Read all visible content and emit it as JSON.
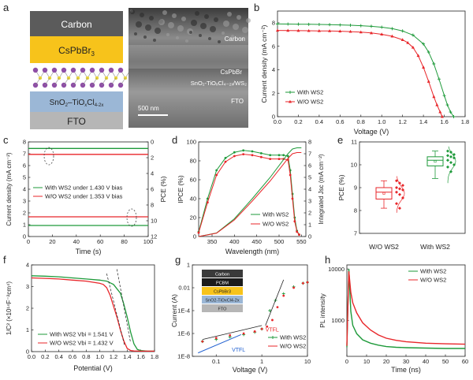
{
  "colors": {
    "green": "#1e9a3a",
    "red": "#e8262a",
    "blue": "#1f5fd0",
    "black": "#222222"
  },
  "panel_a": {
    "letter": "a",
    "stack": [
      "Carbon",
      "CsPbBr",
      "SnO",
      "FTO"
    ],
    "stack_full": {
      "perovskite": "CsPbBr3",
      "etl": "SnO2-TiOxCl4-2x"
    },
    "sem_labels": [
      "Carbon",
      "CsPbBr3",
      "SnO2-TiOxCl4-2x/WS2",
      "FTO"
    ],
    "scale_bar": "500 nm"
  },
  "chart_data": [
    {
      "id": "b",
      "type": "line",
      "xlabel": "Voltage (V)",
      "ylabel": "Current density (mA cm⁻²)",
      "xlim": [
        0,
        1.8
      ],
      "ylim": [
        0,
        9
      ],
      "xticks": [
        "0.0",
        "0.2",
        "0.4",
        "0.6",
        "0.8",
        "1.0",
        "1.2",
        "1.4",
        "1.6",
        "1.8"
      ],
      "yticks": [
        "0",
        "2",
        "4",
        "6",
        "8"
      ],
      "legend": [
        "With WS2",
        "W/O WS2"
      ],
      "legend_position": "bottom-left",
      "series": [
        {
          "name": "With WS2",
          "color": "#1e9a3a",
          "x": [
            0,
            0.1,
            0.2,
            0.3,
            0.4,
            0.5,
            0.6,
            0.7,
            0.8,
            0.9,
            1.0,
            1.1,
            1.2,
            1.3,
            1.4,
            1.45,
            1.5,
            1.55,
            1.6,
            1.63,
            1.66,
            1.69
          ],
          "y": [
            7.9,
            7.89,
            7.88,
            7.87,
            7.86,
            7.84,
            7.82,
            7.79,
            7.75,
            7.7,
            7.62,
            7.5,
            7.3,
            6.95,
            6.2,
            5.5,
            4.5,
            3.2,
            1.8,
            1.0,
            0.4,
            0
          ]
        },
        {
          "name": "W/O WS2",
          "color": "#e8262a",
          "x": [
            0,
            0.1,
            0.2,
            0.3,
            0.4,
            0.5,
            0.6,
            0.7,
            0.8,
            0.9,
            1.0,
            1.1,
            1.2,
            1.25,
            1.3,
            1.35,
            1.4,
            1.45,
            1.5,
            1.53,
            1.56,
            1.58
          ],
          "y": [
            7.35,
            7.34,
            7.33,
            7.32,
            7.31,
            7.3,
            7.28,
            7.25,
            7.2,
            7.13,
            7.02,
            6.85,
            6.55,
            6.3,
            5.9,
            5.2,
            4.2,
            3.0,
            1.7,
            1.0,
            0.4,
            0
          ]
        }
      ]
    },
    {
      "id": "c",
      "type": "line",
      "xlabel": "Time (s)",
      "ylabel": "Current density (mA cm⁻²)",
      "y2label": "PCE (%)",
      "xlim": [
        0,
        100
      ],
      "ylim": [
        0,
        8
      ],
      "y2lim": [
        0,
        12
      ],
      "xticks": [
        "0",
        "20",
        "40",
        "60",
        "80",
        "100"
      ],
      "yticks": [
        "0",
        "1",
        "2",
        "3",
        "4",
        "5",
        "6",
        "7",
        "8"
      ],
      "y2ticks": [
        "0",
        "2",
        "4",
        "6",
        "8",
        "10",
        "12"
      ],
      "legend": [
        "With WS2 under 1.430 V bias",
        "W/O WS2 under 1.353 V bias"
      ],
      "series": [
        {
          "name": "With WS2 under 1.430 V bias",
          "color": "#1e9a3a",
          "axis": "left",
          "x": [
            0,
            100
          ],
          "y": [
            7.45,
            7.45
          ]
        },
        {
          "name": "W/O WS2 under 1.353 V bias",
          "color": "#e8262a",
          "axis": "left",
          "x": [
            0,
            100
          ],
          "y": [
            6.95,
            6.95
          ]
        },
        {
          "name": "With WS2 under 1.430 V bias",
          "color": "#1e9a3a",
          "axis": "right",
          "x": [
            0,
            100
          ],
          "y": [
            10.6,
            10.6
          ]
        },
        {
          "name": "W/O WS2 under 1.353 V bias",
          "color": "#e8262a",
          "axis": "right",
          "x": [
            0,
            100
          ],
          "y": [
            9.5,
            9.5
          ]
        }
      ]
    },
    {
      "id": "d",
      "type": "line",
      "xlabel": "Wavelength (nm)",
      "ylabel": "IPCE (%)",
      "y2label": "Integrated Jsc (mA cm⁻²)",
      "xlim": [
        320,
        560
      ],
      "ylim": [
        0,
        100
      ],
      "y2lim": [
        0,
        8
      ],
      "xticks": [
        "350",
        "400",
        "450",
        "500",
        "550"
      ],
      "yticks": [
        "0",
        "20",
        "40",
        "60",
        "80",
        "100"
      ],
      "y2ticks": [
        "0",
        "1",
        "2",
        "3",
        "4",
        "5",
        "6",
        "7",
        "8"
      ],
      "legend": [
        "With WS2",
        "W/O WS2"
      ],
      "series": [
        {
          "name": "With WS2",
          "color": "#1e9a3a",
          "axis": "left",
          "x": [
            320,
            340,
            360,
            380,
            400,
            420,
            440,
            460,
            480,
            500,
            510,
            520,
            525,
            530,
            535,
            540,
            545
          ],
          "y": [
            5,
            40,
            70,
            83,
            89,
            91,
            90,
            88,
            86,
            86,
            86,
            85,
            70,
            45,
            20,
            6,
            2
          ]
        },
        {
          "name": "W/O WS2",
          "color": "#e8262a",
          "axis": "left",
          "x": [
            320,
            340,
            360,
            380,
            400,
            420,
            440,
            460,
            480,
            500,
            510,
            520,
            525,
            530,
            535,
            540,
            545
          ],
          "y": [
            4,
            36,
            65,
            79,
            85,
            87,
            86,
            84,
            82,
            82,
            82,
            81,
            65,
            40,
            16,
            5,
            2
          ]
        },
        {
          "name": "With WS2",
          "color": "#1e9a3a",
          "axis": "right",
          "x": [
            320,
            360,
            400,
            440,
            480,
            520,
            530,
            540,
            550
          ],
          "y": [
            0,
            0.3,
            1.5,
            3.2,
            5.0,
            7.0,
            7.4,
            7.5,
            7.5
          ]
        },
        {
          "name": "W/O WS2",
          "color": "#e8262a",
          "axis": "right",
          "x": [
            320,
            360,
            400,
            440,
            480,
            520,
            530,
            540,
            550
          ],
          "y": [
            0,
            0.28,
            1.4,
            3.0,
            4.7,
            6.6,
            7.0,
            7.1,
            7.1
          ]
        }
      ]
    },
    {
      "id": "e",
      "type": "box",
      "ylabel": "PCE (%)",
      "ylim": [
        7,
        11
      ],
      "yticks": [
        "7",
        "8",
        "9",
        "10",
        "11"
      ],
      "categories": [
        "W/O WS2",
        "With WS2"
      ],
      "boxes": [
        {
          "name": "W/O WS2",
          "color": "#e8262a",
          "min": 8.1,
          "q1": 8.5,
          "median": 8.8,
          "q3": 9.0,
          "max": 9.3,
          "mean": 8.75,
          "points": [
            9.3,
            9.2,
            9.1,
            9.0,
            8.95,
            8.9,
            8.8,
            8.7,
            8.55,
            8.3,
            8.1
          ]
        },
        {
          "name": "With WS2",
          "color": "#1e9a3a",
          "min": 9.4,
          "q1": 9.95,
          "median": 10.2,
          "q3": 10.35,
          "max": 10.6,
          "mean": 10.15,
          "points": [
            10.6,
            10.55,
            10.45,
            10.4,
            10.35,
            10.3,
            10.2,
            10.1,
            10.0,
            9.9,
            9.7
          ]
        }
      ]
    },
    {
      "id": "f",
      "type": "line",
      "xlabel": "Potential (V)",
      "ylabel": "1/C² (×10¹⁴F⁻²cm⁴)",
      "xlim": [
        0,
        1.8
      ],
      "ylim": [
        0,
        4
      ],
      "xticks": [
        "0.0",
        "0.2",
        "0.4",
        "0.6",
        "0.8",
        "1.0",
        "1.2",
        "1.4",
        "1.6",
        "1.8"
      ],
      "yticks": [
        "0",
        "1",
        "2",
        "3",
        "4"
      ],
      "legend": [
        "With WS2  Vbi = 1.541 V",
        "W/O WS2  Vbi = 1.432 V"
      ],
      "series": [
        {
          "name": "With WS2  Vbi = 1.541 V",
          "color": "#1e9a3a",
          "x": [
            0,
            0.2,
            0.4,
            0.6,
            0.8,
            1.0,
            1.1,
            1.2,
            1.3,
            1.35,
            1.4,
            1.45,
            1.5,
            1.55,
            1.6,
            1.7,
            1.8
          ],
          "y": [
            3.5,
            3.48,
            3.45,
            3.4,
            3.35,
            3.3,
            3.25,
            3.1,
            2.7,
            2.2,
            1.6,
            0.9,
            0.35,
            0.1,
            0.05,
            0.02,
            0.02
          ]
        },
        {
          "name": "W/O WS2  Vbi = 1.432 V",
          "color": "#e8262a",
          "x": [
            0,
            0.2,
            0.4,
            0.6,
            0.8,
            1.0,
            1.05,
            1.1,
            1.15,
            1.2,
            1.25,
            1.3,
            1.35,
            1.4,
            1.45,
            1.5,
            1.6,
            1.8
          ],
          "y": [
            3.4,
            3.38,
            3.35,
            3.3,
            3.25,
            3.15,
            3.1,
            2.95,
            2.6,
            2.1,
            1.6,
            1.0,
            0.5,
            0.15,
            0.05,
            0.03,
            0.02,
            0.02
          ]
        }
      ]
    },
    {
      "id": "g",
      "type": "scatter",
      "xlabel": "Voltage (V)",
      "ylabel": "Current (A)",
      "xscale": "log",
      "yscale": "log",
      "xlim": [
        0.03,
        10
      ],
      "ylim": [
        1e-08,
        1
      ],
      "xticks": [
        "0.1",
        "1",
        "10"
      ],
      "yticks": [
        "1E-8",
        "1E-6",
        "1E-4",
        "0.01",
        "1"
      ],
      "legend": [
        "With WS2",
        "W/O WS2"
      ],
      "annotations": [
        "VTFL",
        "VTFL"
      ],
      "inset_stack": [
        "Carbon",
        "PCBM",
        "CsPbBr3",
        "SnO2-TiOxCl4-2x",
        "FTO"
      ],
      "series": [
        {
          "name": "With WS2",
          "color": "#1e9a3a",
          "x": [
            0.05,
            0.1,
            0.2,
            0.4,
            0.7,
            1.0,
            1.5,
            2,
            3,
            5,
            8,
            10
          ],
          "y": [
            2e-07,
            3e-07,
            5e-07,
            8e-07,
            1.3e-06,
            2.5e-06,
            0.0001,
            0.0008,
            0.003,
            0.012,
            0.025,
            0.03
          ]
        },
        {
          "name": "W/O WS2",
          "color": "#e8262a",
          "x": [
            0.05,
            0.1,
            0.2,
            0.4,
            0.7,
            1.0,
            1.3,
            1.7,
            2.2,
            3,
            5,
            8,
            10
          ],
          "y": [
            2e-07,
            4e-07,
            7e-07,
            1e-06,
            1.5e-06,
            2.5e-06,
            4e-06,
            1.5e-05,
            0.0002,
            0.002,
            0.01,
            0.025,
            0.03
          ]
        }
      ]
    },
    {
      "id": "h",
      "type": "line",
      "xlabel": "Time (ns)",
      "ylabel": "PL intensity",
      "yscale": "log",
      "xlim": [
        0,
        60
      ],
      "ylim": [
        200,
        12000
      ],
      "xticks": [
        "0",
        "10",
        "20",
        "30",
        "40",
        "50",
        "60"
      ],
      "yticks": [
        "1000",
        "10000"
      ],
      "legend": [
        "With WS2",
        "W/O WS2"
      ],
      "series": [
        {
          "name": "With WS2",
          "color": "#1e9a3a",
          "x": [
            0,
            1,
            2,
            3,
            5,
            8,
            12,
            16,
            20,
            25,
            30,
            40,
            50,
            60
          ],
          "y": [
            300,
            10000,
            1500,
            800,
            550,
            420,
            360,
            330,
            310,
            300,
            295,
            290,
            285,
            285
          ]
        },
        {
          "name": "W/O WS2",
          "color": "#e8262a",
          "x": [
            0,
            1,
            2,
            3,
            5,
            8,
            12,
            16,
            20,
            25,
            30,
            40,
            50,
            60
          ],
          "y": [
            320,
            9000,
            3500,
            2200,
            1400,
            900,
            650,
            520,
            450,
            410,
            385,
            360,
            350,
            345
          ]
        }
      ]
    }
  ]
}
